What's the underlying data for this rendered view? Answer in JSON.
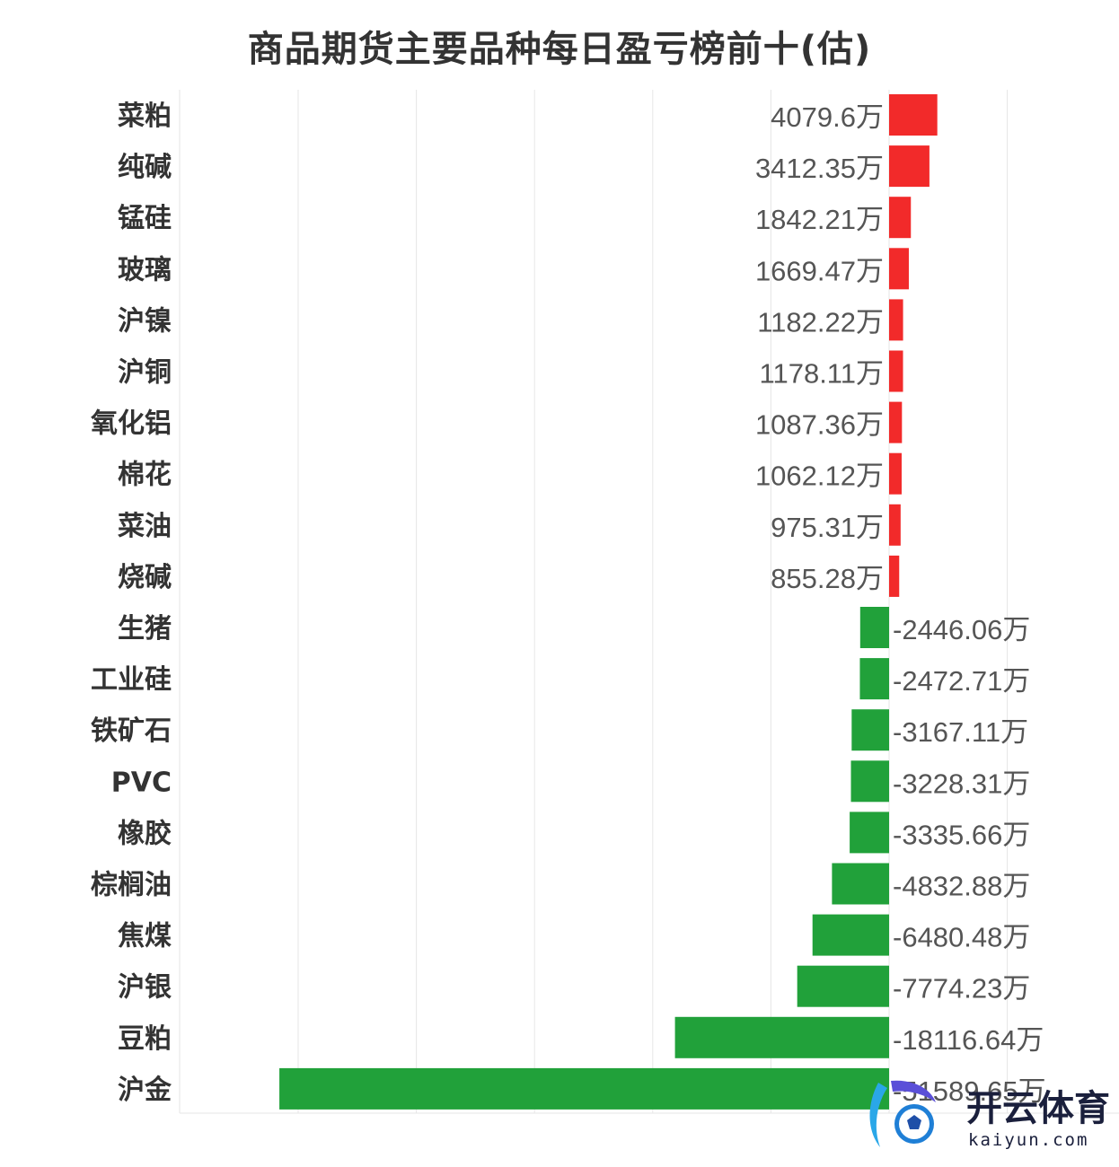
{
  "chart_data": {
    "type": "bar",
    "orientation": "horizontal",
    "title": "商品期货主要品种每日盈亏榜前十(估)",
    "categories": [
      "菜粕",
      "纯碱",
      "锰硅",
      "玻璃",
      "沪镍",
      "沪铜",
      "氧化铝",
      "棉花",
      "菜油",
      "烧碱",
      "生猪",
      "工业硅",
      "铁矿石",
      "PVC",
      "橡胶",
      "棕榈油",
      "焦煤",
      "沪银",
      "豆粕",
      "沪金"
    ],
    "values": [
      4079.6,
      3412.35,
      1842.21,
      1669.47,
      1182.22,
      1178.11,
      1087.36,
      1062.12,
      975.31,
      855.28,
      -2446.06,
      -2472.71,
      -3167.11,
      -3228.31,
      -3335.66,
      -4832.88,
      -6480.48,
      -7774.23,
      -18116.64,
      -51589.65
    ],
    "value_labels": [
      "4079.6万",
      "3412.35万",
      "1842.21万",
      "1669.47万",
      "1182.22万",
      "1178.11万",
      "1087.36万",
      "1062.12万",
      "975.31万",
      "855.28万",
      "-2446.06万",
      "-2472.71万",
      "-3167.11万",
      "-3228.31万",
      "-3335.66万",
      "-4832.88万",
      "-6480.48万",
      "-7774.23万",
      "-18116.64万",
      "-51589.65万"
    ],
    "unit": "万",
    "xlim": [
      -60000,
      10000
    ],
    "grid": true,
    "colors": {
      "positive": "#f22a2a",
      "negative": "#21a13a",
      "grid": "#e6e6e6"
    }
  },
  "watermark": {
    "brand_cn": "开云体育",
    "brand_en": "kaiyun.com"
  }
}
